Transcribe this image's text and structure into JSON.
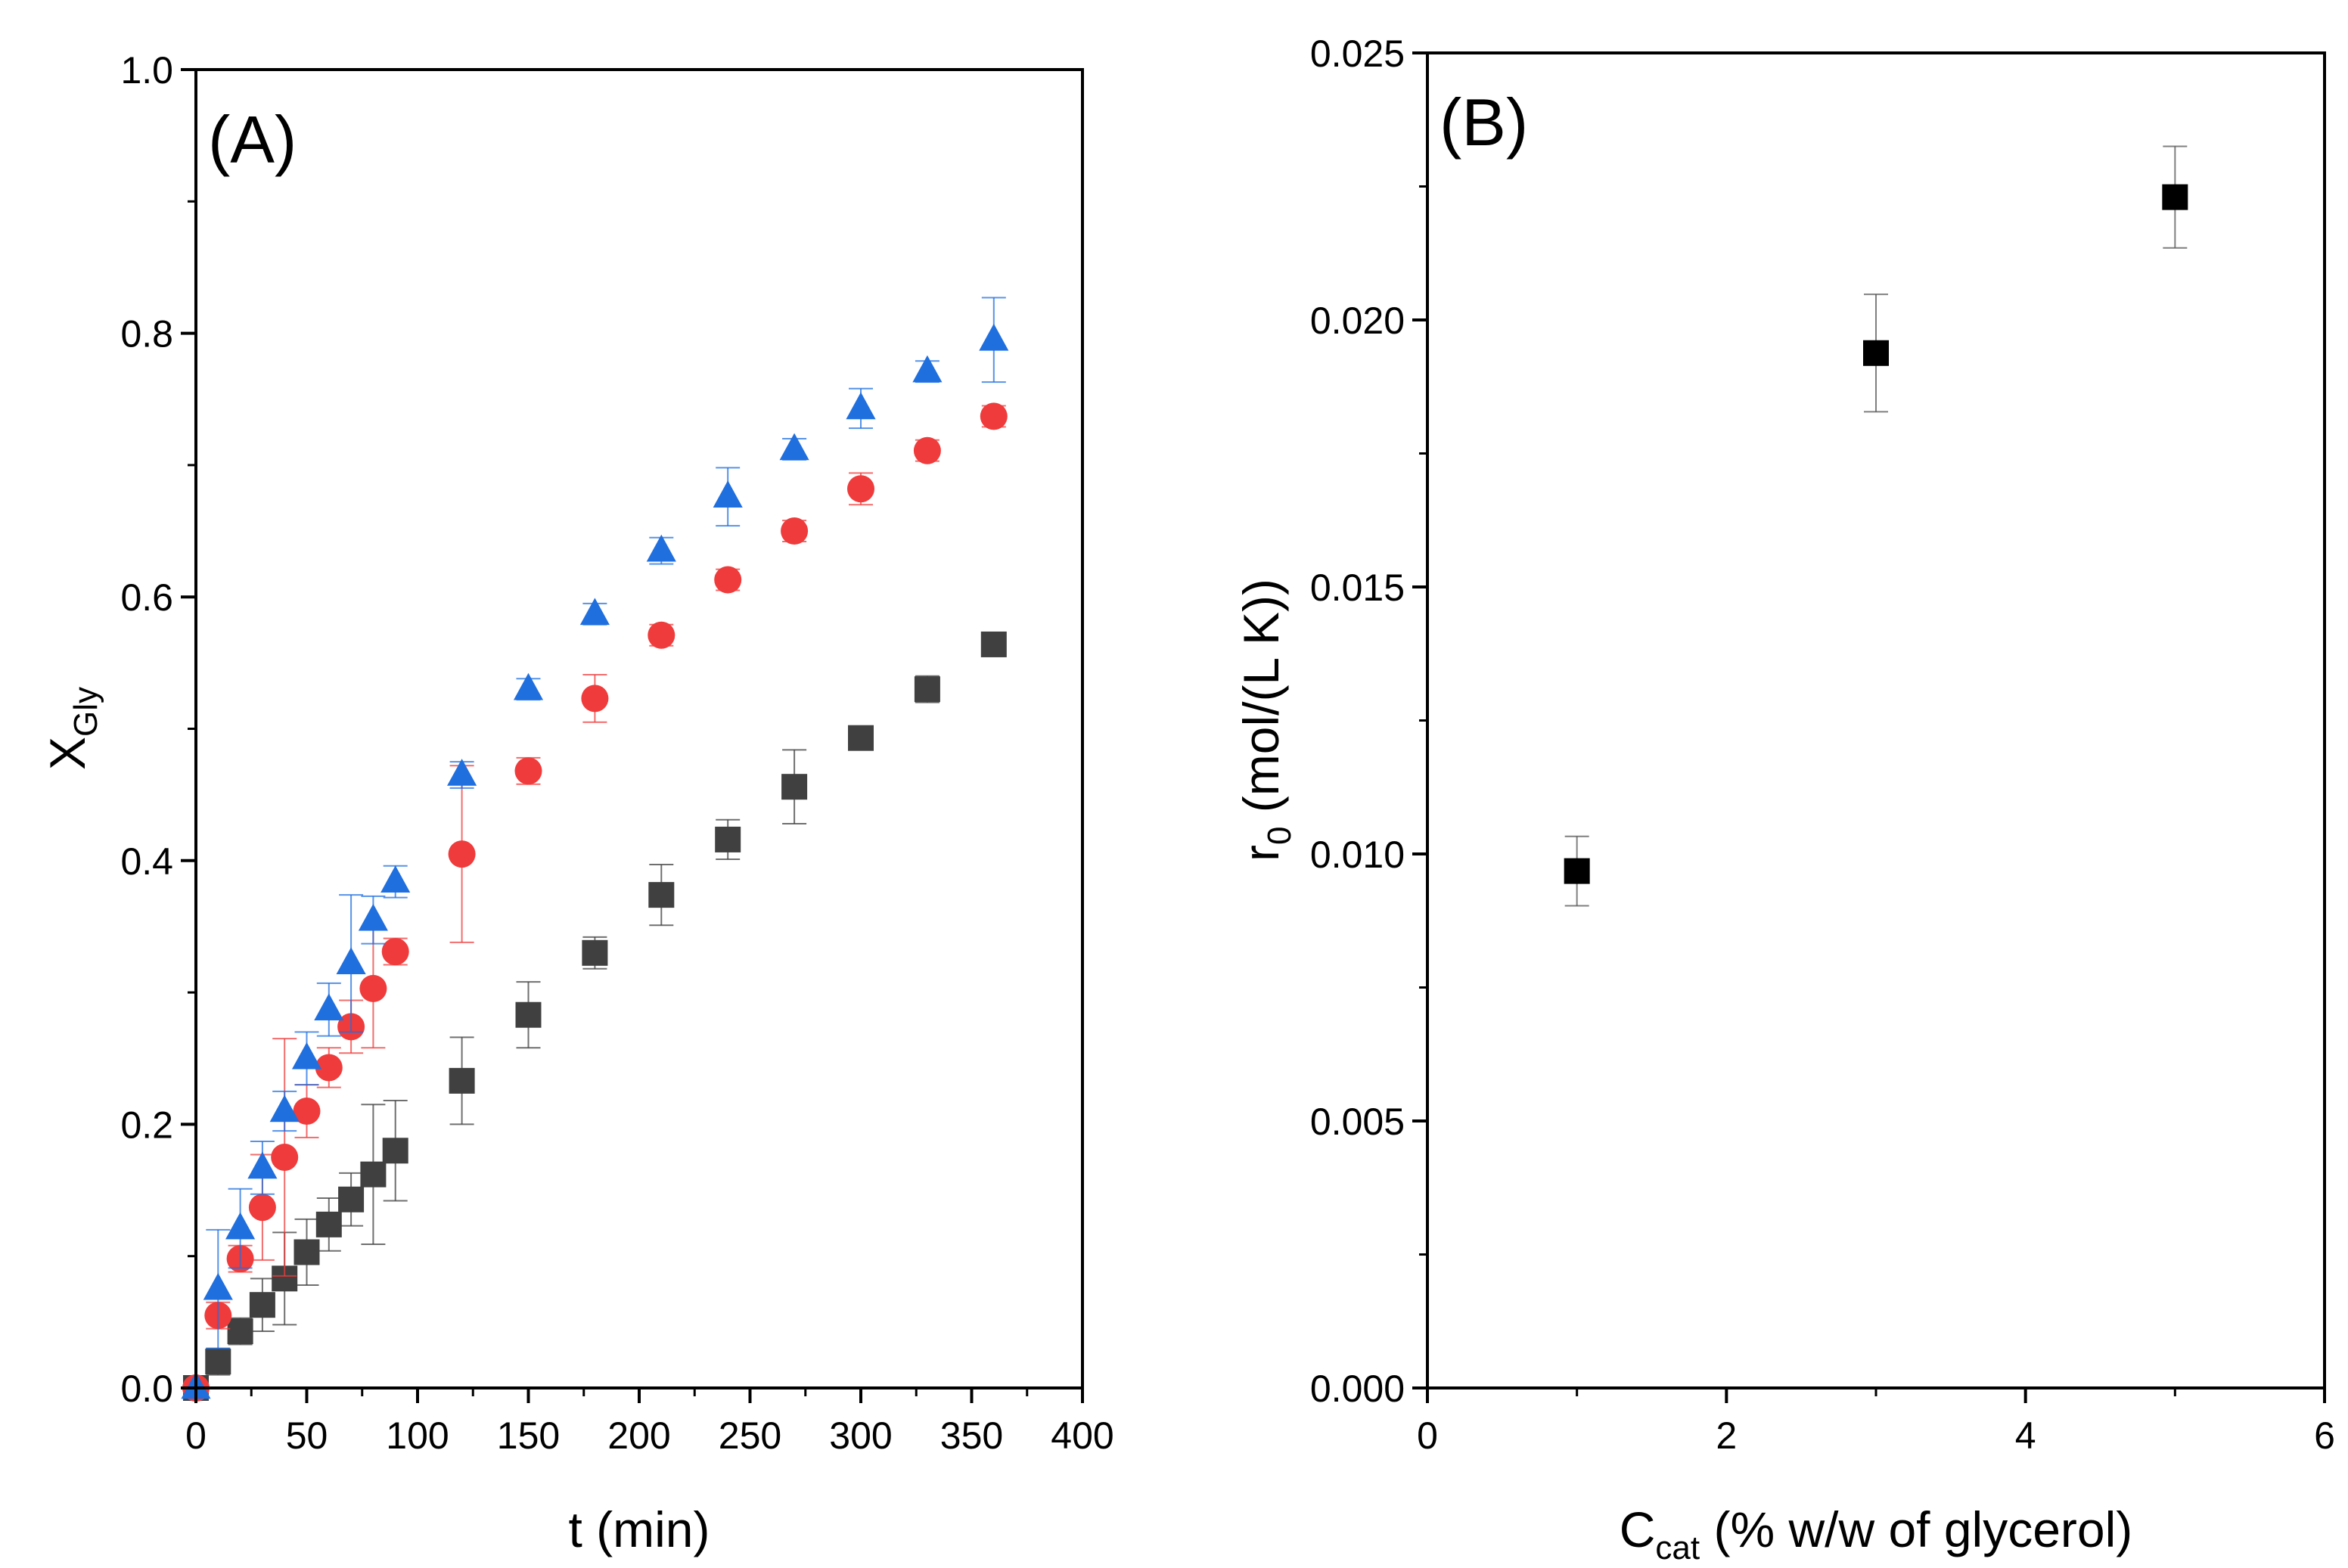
{
  "chart_data": [
    {
      "panel": "(A)",
      "type": "scatter",
      "xlabel": "t (min)",
      "ylabel": {
        "main": "X",
        "sub": "Gly"
      },
      "xlim": [
        0,
        400
      ],
      "ylim": [
        0,
        1.0
      ],
      "xticks": [
        0,
        50,
        100,
        150,
        200,
        250,
        300,
        350,
        400
      ],
      "yticks": [
        0.0,
        0.2,
        0.4,
        0.6,
        0.8,
        1.0
      ],
      "xtick_labels": [
        "0",
        "50",
        "100",
        "150",
        "200",
        "250",
        "300",
        "350",
        "400"
      ],
      "ytick_labels": [
        "0.0",
        "0.2",
        "0.4",
        "0.6",
        "0.8",
        "1.0"
      ],
      "series": [
        {
          "name": "series-square",
          "marker": "square",
          "color": "#404040",
          "x": [
            0,
            10,
            20,
            30,
            40,
            50,
            60,
            70,
            80,
            90,
            120,
            150,
            180,
            210,
            240,
            270,
            300,
            330,
            360
          ],
          "y": [
            0.0,
            0.02,
            0.043,
            0.063,
            0.083,
            0.103,
            0.124,
            0.143,
            0.162,
            0.18,
            0.233,
            0.283,
            0.33,
            0.374,
            0.416,
            0.456,
            0.493,
            0.53,
            0.564
          ],
          "err": [
            0,
            0.01,
            0.01,
            0.02,
            0.035,
            0.025,
            0.02,
            0.02,
            0.053,
            0.038,
            0.033,
            0.025,
            0.012,
            0.023,
            0.015,
            0.028,
            0.005,
            0.01,
            0.005
          ]
        },
        {
          "name": "series-circle",
          "marker": "circle",
          "color": "#ef3b3b",
          "x": [
            0,
            10,
            20,
            30,
            40,
            50,
            60,
            70,
            80,
            90,
            120,
            150,
            180,
            210,
            240,
            270,
            300,
            330,
            360
          ],
          "y": [
            0.0,
            0.055,
            0.098,
            0.137,
            0.175,
            0.21,
            0.243,
            0.274,
            0.303,
            0.331,
            0.405,
            0.468,
            0.523,
            0.571,
            0.613,
            0.65,
            0.682,
            0.711,
            0.737
          ],
          "err": [
            0,
            0.01,
            0.01,
            0.04,
            0.09,
            0.02,
            0.015,
            0.02,
            0.045,
            0.01,
            0.067,
            0.01,
            0.018,
            0.008,
            0.008,
            0.008,
            0.012,
            0.008,
            0.008
          ]
        },
        {
          "name": "series-triangle",
          "marker": "triangle",
          "color": "#1f6fdf",
          "x": [
            0,
            10,
            20,
            30,
            40,
            50,
            60,
            70,
            80,
            90,
            120,
            150,
            180,
            210,
            240,
            270,
            300,
            330,
            360
          ],
          "y": [
            0.0,
            0.075,
            0.121,
            0.167,
            0.21,
            0.25,
            0.287,
            0.322,
            0.355,
            0.384,
            0.465,
            0.53,
            0.587,
            0.635,
            0.676,
            0.712,
            0.743,
            0.771,
            0.795
          ],
          "err": [
            0,
            0.045,
            0.03,
            0.02,
            0.015,
            0.02,
            0.02,
            0.052,
            0.018,
            0.012,
            0.01,
            0.008,
            0.008,
            0.01,
            0.022,
            0.008,
            0.015,
            0.008,
            0.032
          ]
        }
      ]
    },
    {
      "panel": "(B)",
      "type": "scatter",
      "xlabel": {
        "main": "C",
        "sub": "cat",
        "rest": " (% w/w of glycerol)"
      },
      "ylabel": {
        "main": "r",
        "sub": "0",
        "rest": " (mol/(L K))"
      },
      "xlim": [
        0,
        6
      ],
      "ylim": [
        0,
        0.025
      ],
      "xticks": [
        0,
        2,
        4,
        6
      ],
      "yticks": [
        0.0,
        0.005,
        0.01,
        0.015,
        0.02,
        0.025
      ],
      "xtick_labels": [
        "0",
        "2",
        "4",
        "6"
      ],
      "ytick_labels": [
        "0.000",
        "0.005",
        "0.010",
        "0.015",
        "0.020",
        "0.025"
      ],
      "series": [
        {
          "name": "series-rate",
          "marker": "square",
          "color": "#000000",
          "x": [
            1,
            3,
            5
          ],
          "y": [
            0.00968,
            0.01938,
            0.0223
          ],
          "err": [
            0.00065,
            0.0011,
            0.00095
          ]
        }
      ]
    }
  ]
}
